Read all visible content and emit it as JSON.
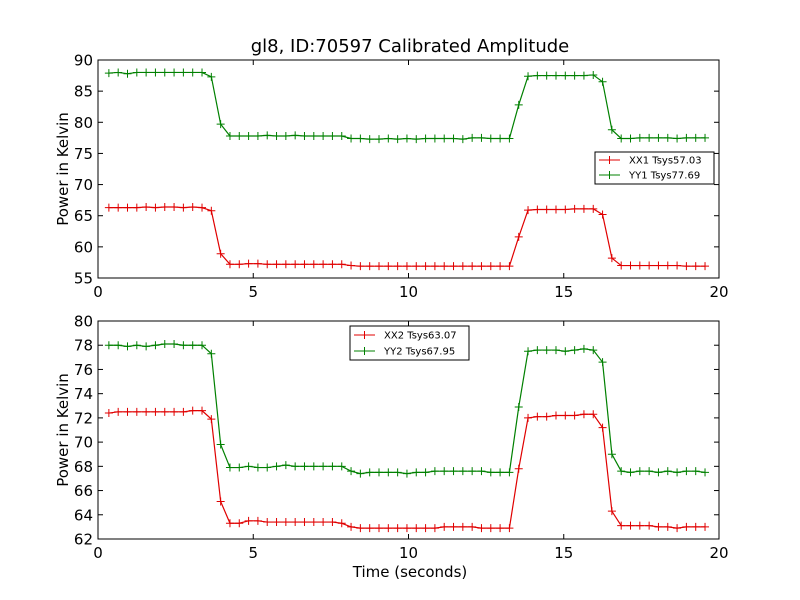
{
  "colors": {
    "xx": "#e00000",
    "yy": "#008000",
    "axis": "#000000",
    "background": "#ffffff"
  },
  "chart_data": [
    {
      "type": "line",
      "title": "gl8, ID:70597 Calibrated Amplitude",
      "xlabel": "",
      "ylabel": "Power in Kelvin",
      "xlim": [
        0,
        20
      ],
      "ylim": [
        55,
        90
      ],
      "xticks": [
        0,
        5,
        10,
        15,
        20
      ],
      "yticks": [
        55,
        60,
        65,
        70,
        75,
        80,
        85,
        90
      ],
      "grid": false,
      "legend_position": "right",
      "x": [
        0.35,
        0.65,
        0.95,
        1.25,
        1.55,
        1.85,
        2.15,
        2.45,
        2.75,
        3.05,
        3.35,
        3.65,
        3.95,
        4.25,
        4.55,
        4.85,
        5.15,
        5.45,
        5.75,
        6.05,
        6.35,
        6.65,
        6.95,
        7.25,
        7.55,
        7.85,
        8.15,
        8.45,
        8.75,
        9.05,
        9.35,
        9.65,
        9.95,
        10.25,
        10.55,
        10.85,
        11.15,
        11.45,
        11.75,
        12.05,
        12.35,
        12.65,
        12.95,
        13.25,
        13.55,
        13.85,
        14.15,
        14.45,
        14.75,
        15.05,
        15.35,
        15.65,
        15.95,
        16.25,
        16.55,
        16.85,
        17.15,
        17.45,
        17.75,
        18.05,
        18.35,
        18.65,
        18.95,
        19.25,
        19.55
      ],
      "series": [
        {
          "name": "XX1 Tsys57.03",
          "color": "#e00000",
          "values": [
            66.3,
            66.3,
            66.3,
            66.3,
            66.4,
            66.3,
            66.4,
            66.4,
            66.3,
            66.4,
            66.3,
            65.8,
            58.9,
            57.2,
            57.2,
            57.3,
            57.3,
            57.2,
            57.2,
            57.2,
            57.2,
            57.2,
            57.2,
            57.2,
            57.2,
            57.2,
            57.0,
            56.9,
            56.9,
            56.9,
            56.9,
            56.9,
            56.9,
            56.9,
            56.9,
            56.9,
            56.9,
            56.9,
            56.9,
            56.9,
            56.9,
            56.9,
            56.9,
            56.9,
            61.6,
            65.9,
            66.0,
            66.0,
            66.0,
            66.0,
            66.1,
            66.1,
            66.1,
            65.2,
            58.2,
            57.0,
            57.0,
            57.0,
            57.0,
            57.0,
            57.0,
            57.0,
            56.9,
            56.9,
            56.9
          ]
        },
        {
          "name": "YY1 Tsys77.69",
          "color": "#008000",
          "values": [
            87.9,
            88.0,
            87.8,
            88.0,
            88.0,
            88.0,
            88.0,
            88.0,
            88.0,
            88.0,
            88.0,
            87.3,
            79.7,
            77.8,
            77.8,
            77.8,
            77.8,
            77.9,
            77.8,
            77.8,
            77.9,
            77.8,
            77.8,
            77.8,
            77.8,
            77.8,
            77.4,
            77.4,
            77.3,
            77.3,
            77.4,
            77.3,
            77.4,
            77.3,
            77.4,
            77.4,
            77.4,
            77.4,
            77.3,
            77.5,
            77.5,
            77.4,
            77.4,
            77.4,
            82.8,
            87.4,
            87.5,
            87.5,
            87.5,
            87.5,
            87.5,
            87.5,
            87.6,
            86.5,
            78.8,
            77.4,
            77.4,
            77.5,
            77.5,
            77.5,
            77.5,
            77.4,
            77.5,
            77.5,
            77.5
          ]
        }
      ]
    },
    {
      "type": "line",
      "title": "",
      "xlabel": "Time (seconds)",
      "ylabel": "Power in Kelvin",
      "xlim": [
        0,
        20
      ],
      "ylim": [
        62,
        80
      ],
      "xticks": [
        0,
        5,
        10,
        15,
        20
      ],
      "yticks": [
        62,
        64,
        66,
        68,
        70,
        72,
        74,
        76,
        78,
        80
      ],
      "grid": false,
      "legend_position": "top-center",
      "x": [
        0.35,
        0.65,
        0.95,
        1.25,
        1.55,
        1.85,
        2.15,
        2.45,
        2.75,
        3.05,
        3.35,
        3.65,
        3.95,
        4.25,
        4.55,
        4.85,
        5.15,
        5.45,
        5.75,
        6.05,
        6.35,
        6.65,
        6.95,
        7.25,
        7.55,
        7.85,
        8.15,
        8.45,
        8.75,
        9.05,
        9.35,
        9.65,
        9.95,
        10.25,
        10.55,
        10.85,
        11.15,
        11.45,
        11.75,
        12.05,
        12.35,
        12.65,
        12.95,
        13.25,
        13.55,
        13.85,
        14.15,
        14.45,
        14.75,
        15.05,
        15.35,
        15.65,
        15.95,
        16.25,
        16.55,
        16.85,
        17.15,
        17.45,
        17.75,
        18.05,
        18.35,
        18.65,
        18.95,
        19.25,
        19.55
      ],
      "series": [
        {
          "name": "XX2 Tsys63.07",
          "color": "#e00000",
          "values": [
            72.4,
            72.5,
            72.5,
            72.5,
            72.5,
            72.5,
            72.5,
            72.5,
            72.5,
            72.6,
            72.6,
            71.9,
            65.1,
            63.3,
            63.3,
            63.5,
            63.5,
            63.4,
            63.4,
            63.4,
            63.4,
            63.4,
            63.4,
            63.4,
            63.4,
            63.3,
            63.0,
            62.9,
            62.9,
            62.9,
            62.9,
            62.9,
            62.9,
            62.9,
            62.9,
            62.9,
            63.0,
            63.0,
            63.0,
            63.0,
            62.9,
            62.9,
            62.9,
            62.9,
            67.8,
            72.0,
            72.1,
            72.1,
            72.2,
            72.2,
            72.2,
            72.3,
            72.3,
            71.2,
            64.3,
            63.1,
            63.1,
            63.1,
            63.1,
            63.0,
            63.0,
            62.9,
            63.0,
            63.0,
            63.0
          ]
        },
        {
          "name": "YY2 Tsys67.95",
          "color": "#008000",
          "values": [
            78.0,
            78.0,
            77.9,
            78.0,
            77.9,
            78.0,
            78.1,
            78.1,
            78.0,
            78.0,
            78.0,
            77.3,
            69.8,
            67.9,
            67.9,
            68.0,
            67.9,
            67.9,
            68.0,
            68.1,
            68.0,
            68.0,
            68.0,
            68.0,
            68.0,
            68.0,
            67.6,
            67.4,
            67.5,
            67.5,
            67.5,
            67.5,
            67.4,
            67.5,
            67.5,
            67.6,
            67.6,
            67.6,
            67.6,
            67.6,
            67.6,
            67.5,
            67.5,
            67.5,
            72.9,
            77.5,
            77.6,
            77.6,
            77.6,
            77.5,
            77.6,
            77.7,
            77.6,
            76.6,
            69.0,
            67.6,
            67.5,
            67.6,
            67.6,
            67.5,
            67.6,
            67.5,
            67.6,
            67.6,
            67.5
          ]
        }
      ]
    }
  ]
}
